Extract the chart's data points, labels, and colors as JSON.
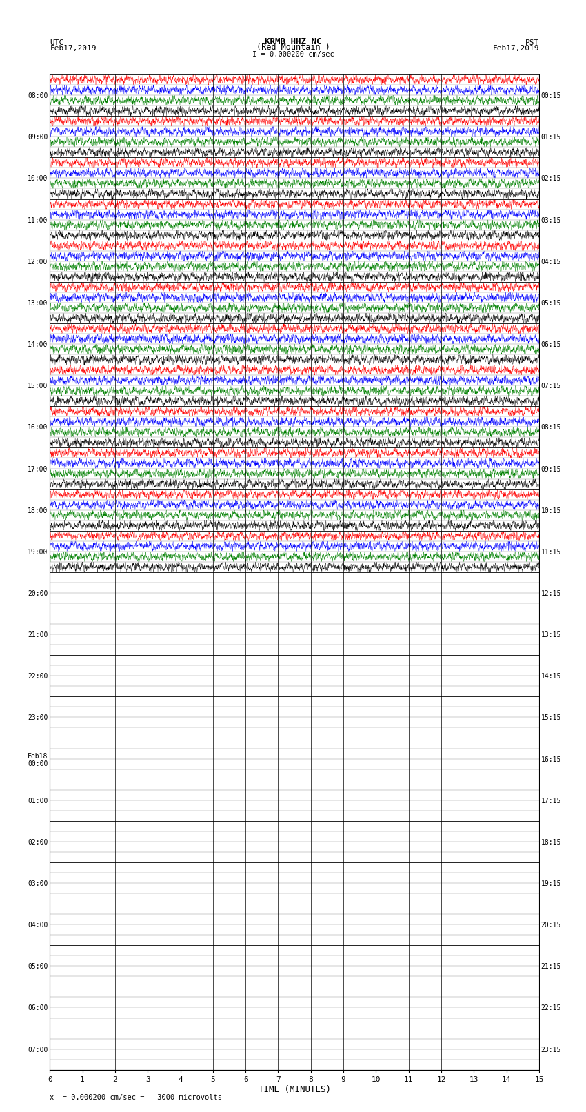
{
  "title_line1": "KRMB HHZ NC",
  "title_line2": "(Red Mountain )",
  "scale_text": "I = 0.000200 cm/sec",
  "left_label": "UTC\nFeb17,2019",
  "right_label": "PST\nFeb17,2019",
  "bottom_label": "x  = 0.000200 cm/sec =   3000 microvolts",
  "xlabel": "TIME (MINUTES)",
  "left_times_utc": [
    "08:00",
    "09:00",
    "10:00",
    "11:00",
    "12:00",
    "13:00",
    "14:00",
    "15:00",
    "16:00",
    "17:00",
    "18:00",
    "19:00",
    "20:00",
    "21:00",
    "22:00",
    "23:00",
    "Feb18\n00:00",
    "01:00",
    "02:00",
    "03:00",
    "04:00",
    "05:00",
    "06:00",
    "07:00"
  ],
  "right_times_pst": [
    "00:15",
    "01:15",
    "02:15",
    "03:15",
    "04:15",
    "05:15",
    "06:15",
    "07:15",
    "08:15",
    "09:15",
    "10:15",
    "11:15",
    "12:15",
    "13:15",
    "14:15",
    "15:15",
    "16:15",
    "17:15",
    "18:15",
    "19:15",
    "20:15",
    "21:15",
    "22:15",
    "23:15"
  ],
  "num_rows": 24,
  "minutes_per_row": 15,
  "colors": [
    "red",
    "blue",
    "green",
    "black"
  ],
  "active_rows": 12,
  "bg_color": "white",
  "grid_color": "#888888",
  "figsize": [
    8.5,
    16.13
  ],
  "dpi": 100
}
